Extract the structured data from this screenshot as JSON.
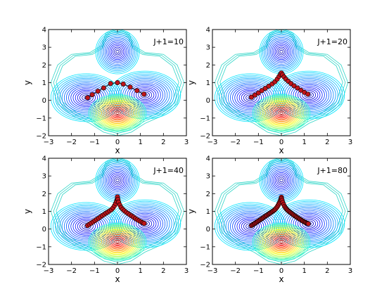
{
  "chart_data": [
    {
      "type": "contour",
      "annotation": "J+1=10",
      "xlabel": "x",
      "ylabel": "y",
      "xlim": [
        -3,
        3
      ],
      "ylim": [
        -2,
        4
      ],
      "xticks": [
        "−3",
        "−2",
        "−1",
        "0",
        "1",
        "2",
        "3"
      ],
      "yticks": [
        "−2",
        "−1",
        "0",
        "1",
        "2",
        "3",
        "4"
      ],
      "path": {
        "x": [
          -1.3,
          -1.1,
          -0.85,
          -0.6,
          -0.3,
          0.0,
          0.25,
          0.55,
          0.85,
          1.15
        ],
        "y": [
          0.15,
          0.32,
          0.52,
          0.7,
          0.95,
          1.0,
          0.92,
          0.75,
          0.55,
          0.35
        ]
      }
    },
    {
      "type": "contour",
      "annotation": "J+1=20",
      "xlabel": "x",
      "ylabel": "y",
      "xlim": [
        -3,
        3
      ],
      "ylim": [
        -2,
        4
      ],
      "xticks": [
        "−3",
        "−2",
        "−1",
        "0",
        "1",
        "2",
        "3"
      ],
      "yticks": [
        "−2",
        "−1",
        "0",
        "1",
        "2",
        "3",
        "4"
      ],
      "path": {
        "x": [
          -1.3,
          -1.15,
          -1.0,
          -0.85,
          -0.7,
          -0.55,
          -0.4,
          -0.28,
          -0.18,
          -0.1,
          -0.04,
          0.0,
          0.05,
          0.12,
          0.2,
          0.3,
          0.42,
          0.55,
          0.7,
          0.85,
          1.0,
          1.15
        ],
        "y": [
          0.18,
          0.3,
          0.42,
          0.55,
          0.68,
          0.8,
          0.93,
          1.05,
          1.2,
          1.35,
          1.48,
          1.55,
          1.45,
          1.32,
          1.2,
          1.08,
          0.95,
          0.82,
          0.7,
          0.57,
          0.45,
          0.35
        ]
      }
    },
    {
      "type": "contour",
      "annotation": "J+1=40",
      "xlabel": "x",
      "ylabel": "y",
      "xlim": [
        -3,
        3
      ],
      "ylim": [
        -2,
        4
      ],
      "xticks": [
        "−3",
        "−2",
        "−1",
        "0",
        "1",
        "2",
        "3"
      ],
      "yticks": [
        "−2",
        "−1",
        "0",
        "1",
        "2",
        "3",
        "4"
      ],
      "path": {
        "x": [
          -1.3,
          -1.22,
          -1.14,
          -1.06,
          -0.98,
          -0.9,
          -0.82,
          -0.74,
          -0.66,
          -0.58,
          -0.5,
          -0.42,
          -0.34,
          -0.26,
          -0.19,
          -0.13,
          -0.08,
          -0.04,
          -0.01,
          0.0,
          0.02,
          0.05,
          0.1,
          0.16,
          0.23,
          0.3,
          0.38,
          0.46,
          0.54,
          0.62,
          0.7,
          0.78,
          0.86,
          0.94,
          1.02,
          1.1,
          1.16
        ],
        "y": [
          0.2,
          0.27,
          0.34,
          0.41,
          0.48,
          0.55,
          0.62,
          0.69,
          0.76,
          0.83,
          0.9,
          0.96,
          1.03,
          1.1,
          1.2,
          1.32,
          1.45,
          1.58,
          1.7,
          1.82,
          1.68,
          1.52,
          1.36,
          1.22,
          1.12,
          1.03,
          0.95,
          0.88,
          0.81,
          0.74,
          0.67,
          0.6,
          0.53,
          0.47,
          0.41,
          0.36,
          0.32
        ]
      }
    },
    {
      "type": "contour",
      "annotation": "J+1=80",
      "xlabel": "x",
      "ylabel": "y",
      "xlim": [
        -3,
        3
      ],
      "ylim": [
        -2,
        4
      ],
      "xticks": [
        "−3",
        "−2",
        "−1",
        "0",
        "1",
        "2",
        "3"
      ],
      "yticks": [
        "−2",
        "−1",
        "0",
        "1",
        "2",
        "3",
        "4"
      ],
      "path": {
        "x": [
          -1.3,
          -1.26,
          -1.22,
          -1.18,
          -1.14,
          -1.1,
          -1.06,
          -1.02,
          -0.98,
          -0.94,
          -0.9,
          -0.86,
          -0.82,
          -0.78,
          -0.74,
          -0.7,
          -0.66,
          -0.62,
          -0.58,
          -0.54,
          -0.5,
          -0.46,
          -0.42,
          -0.38,
          -0.34,
          -0.3,
          -0.26,
          -0.22,
          -0.18,
          -0.14,
          -0.11,
          -0.08,
          -0.05,
          -0.03,
          -0.01,
          0.0,
          0.01,
          0.03,
          0.06,
          0.1,
          0.14,
          0.18,
          0.22,
          0.26,
          0.3,
          0.34,
          0.38,
          0.42,
          0.46,
          0.5,
          0.54,
          0.58,
          0.62,
          0.66,
          0.7,
          0.74,
          0.78,
          0.82,
          0.86,
          0.9,
          0.94,
          0.98,
          1.02,
          1.06,
          1.1,
          1.14,
          1.17
        ],
        "y": [
          0.2,
          0.23,
          0.27,
          0.3,
          0.34,
          0.37,
          0.41,
          0.44,
          0.48,
          0.51,
          0.55,
          0.58,
          0.62,
          0.65,
          0.69,
          0.72,
          0.76,
          0.79,
          0.83,
          0.86,
          0.9,
          0.93,
          0.97,
          1.0,
          1.04,
          1.08,
          1.13,
          1.19,
          1.26,
          1.34,
          1.42,
          1.5,
          1.58,
          1.66,
          1.74,
          1.8,
          1.72,
          1.62,
          1.5,
          1.38,
          1.28,
          1.2,
          1.14,
          1.08,
          1.03,
          0.99,
          0.95,
          0.91,
          0.87,
          0.83,
          0.79,
          0.75,
          0.72,
          0.68,
          0.65,
          0.61,
          0.58,
          0.55,
          0.51,
          0.48,
          0.45,
          0.42,
          0.39,
          0.37,
          0.34,
          0.32,
          0.3
        ]
      }
    }
  ]
}
